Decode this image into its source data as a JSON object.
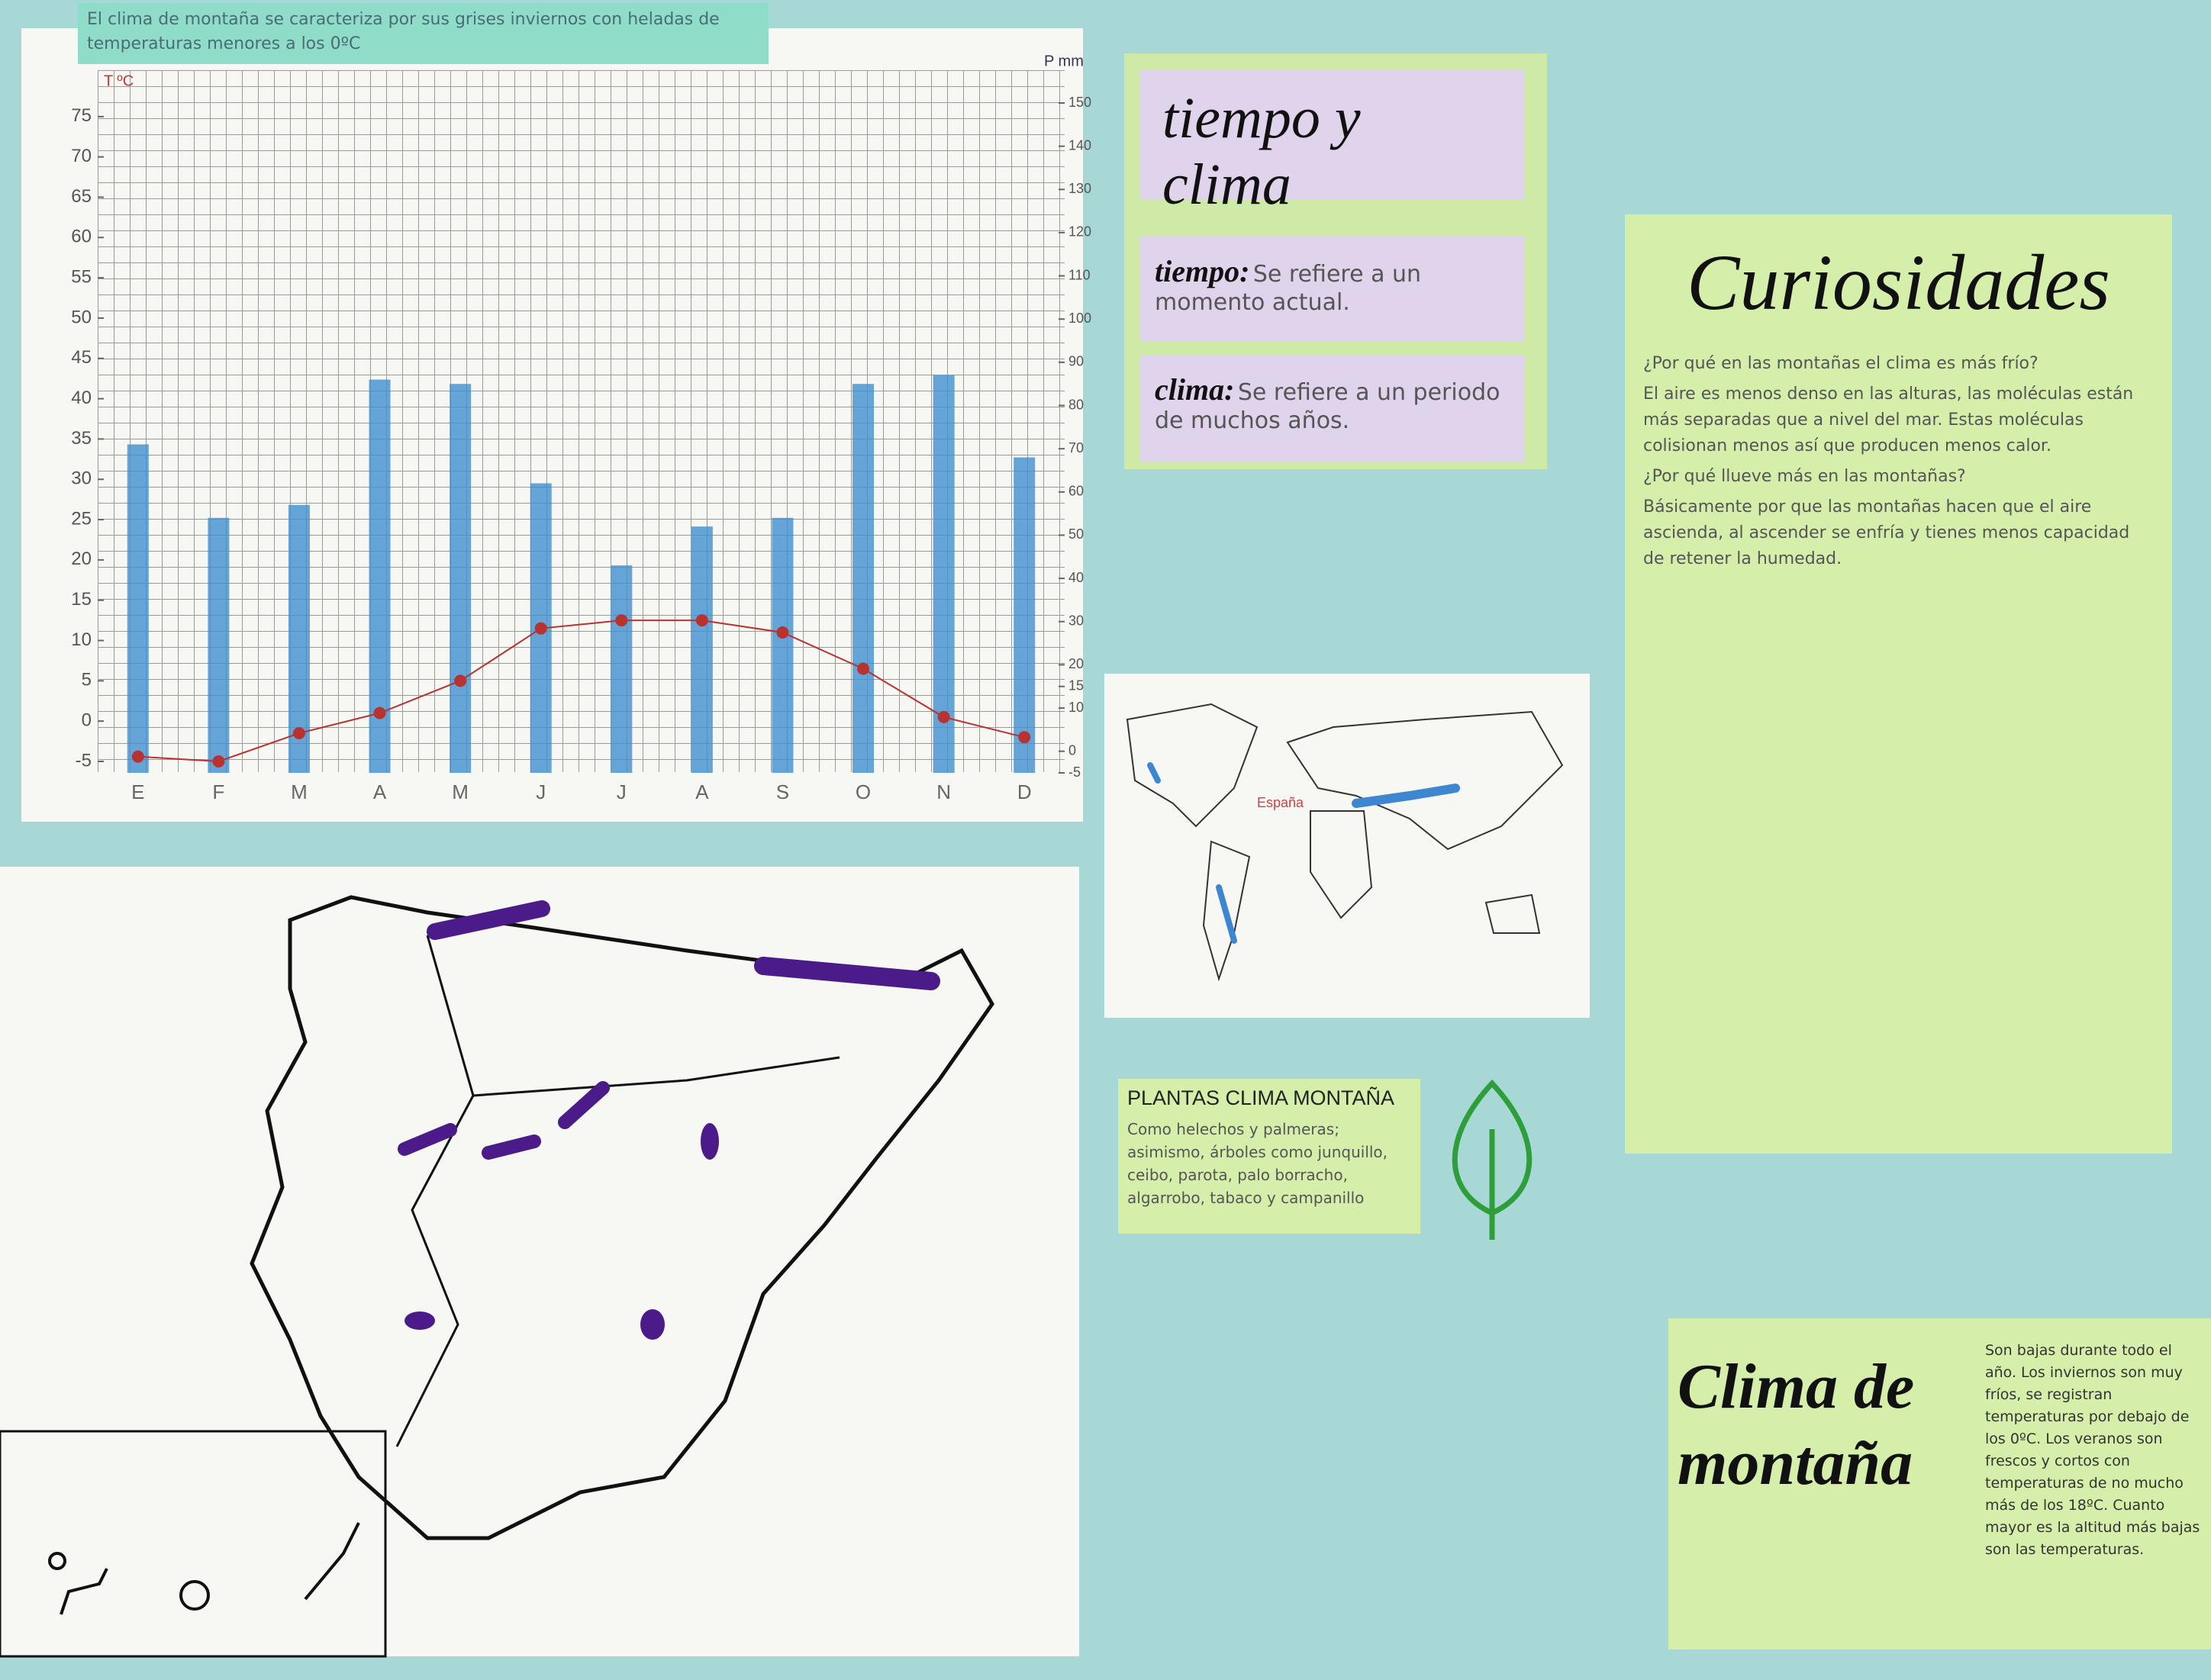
{
  "chart_data": {
    "type": "bar-line",
    "title": "El clima de montaña se caracteriza por sus grises inviernos con heladas de temperaturas menores a los 0ºC",
    "ylabel": "T ºC",
    "y2label": "P mm",
    "categories": [
      "E",
      "F",
      "M",
      "A",
      "M",
      "J",
      "J",
      "A",
      "S",
      "O",
      "N",
      "D"
    ],
    "series": [
      {
        "type": "bar",
        "axis": "y2",
        "color": "#3f8fcf",
        "values": [
          71,
          54,
          57,
          86,
          85,
          62,
          43,
          52,
          54,
          85,
          87,
          68
        ]
      },
      {
        "type": "line",
        "color": "#b8322f",
        "values": [
          -4.4,
          -5,
          -1.5,
          1,
          5,
          11.5,
          12.5,
          12.5,
          11,
          6.5,
          0.5,
          -2
        ]
      }
    ],
    "ylim": [
      -5,
      80
    ],
    "yticks": [
      -5,
      0,
      5,
      10,
      15,
      20,
      25,
      30,
      35,
      40,
      45,
      50,
      55,
      60,
      65,
      70,
      75
    ],
    "y2lim": [
      -5,
      150
    ],
    "y2ticks": [
      -5,
      0,
      10,
      15,
      20,
      30,
      40,
      50,
      60,
      70,
      80,
      90,
      100,
      110,
      120,
      130,
      140,
      150
    ],
    "grid": true
  },
  "tiempo_clima": {
    "title": "tiempo y clima",
    "items": [
      {
        "term": "tiempo:",
        "text": "Se refiere a un momento actual."
      },
      {
        "term": "clima:",
        "text": "Se refiere a un periodo de muchos años."
      }
    ]
  },
  "world_map": {
    "label": "España"
  },
  "curiosidades": {
    "title": "Curiosidades",
    "paragraphs": [
      "¿Por qué en las montañas el clima es más frío?",
      "El aire es menos denso en las alturas, las moléculas están más separadas que a nivel del mar. Estas moléculas colisionan menos así que producen menos calor.",
      "¿Por qué llueve más en las montañas?",
      "Básicamente por que las montañas hacen que el aire ascienda, al ascender se enfría y tienes menos capacidad de retener la humedad."
    ]
  },
  "plantas": {
    "title": "PLANTAS CLIMA MONTAÑA",
    "text": "Como helechos y palmeras; asimismo, árboles como junquillo, ceibo, parota, palo borracho, algarrobo, tabaco y campanillo"
  },
  "clima_montana": {
    "title": "Clima de montaña",
    "text": "Son bajas durante todo el año. Los inviernos son muy fríos, se registran temperaturas por debajo de los 0ºC. Los veranos son frescos y cortos con temperaturas de no mucho más de los 18ºC. Cuanto mayor es la altitud más bajas son las temperaturas."
  }
}
